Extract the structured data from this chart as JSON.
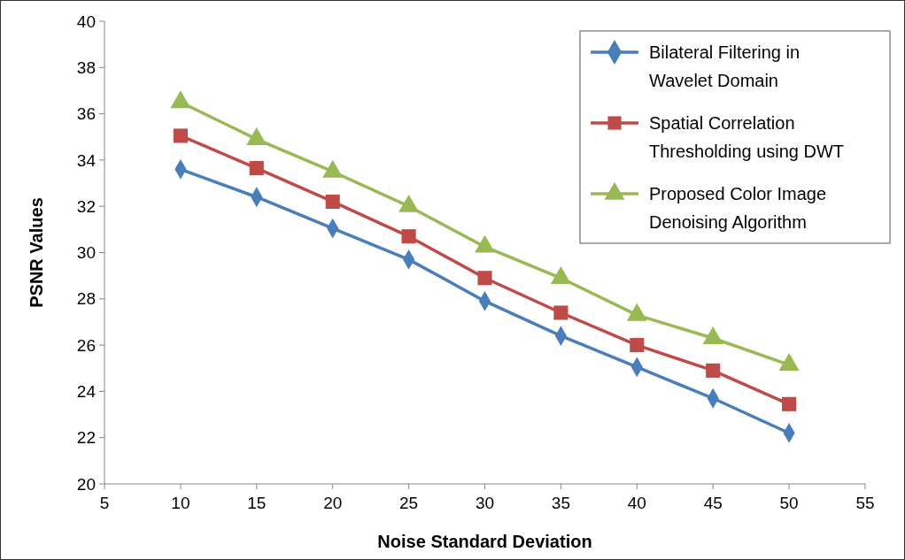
{
  "chart_data": {
    "type": "line",
    "xlabel": "Noise Standard Deviation",
    "ylabel": "PSNR Values",
    "x": [
      10,
      15,
      20,
      25,
      30,
      35,
      40,
      45,
      50
    ],
    "xlim": [
      5,
      55
    ],
    "xticks": [
      5,
      10,
      15,
      20,
      25,
      30,
      35,
      40,
      45,
      50,
      55
    ],
    "ylim": [
      20,
      40
    ],
    "yticks": [
      20,
      22,
      24,
      26,
      28,
      30,
      32,
      34,
      36,
      38,
      40
    ],
    "grid": false,
    "legend": "top right",
    "line_style": "solid",
    "series": [
      {
        "name": "Bilateral Filtering in Wavelet Domain",
        "color": "#4a7ebb",
        "marker": "diamond",
        "values": [
          33.6,
          32.4,
          31.05,
          29.7,
          27.9,
          26.4,
          25.05,
          23.7,
          22.2
        ]
      },
      {
        "name": "Spatial Correlation Thresholding using DWT",
        "color": "#be4b48",
        "marker": "square",
        "values": [
          35.05,
          33.65,
          32.2,
          30.7,
          28.9,
          27.4,
          26.0,
          24.9,
          23.45
        ]
      },
      {
        "name": "Proposed Color Image Denoising Algorithm",
        "color": "#98b954",
        "marker": "triangle",
        "values": [
          36.5,
          34.9,
          33.5,
          32.0,
          30.25,
          28.9,
          27.3,
          26.3,
          25.15
        ]
      }
    ]
  }
}
